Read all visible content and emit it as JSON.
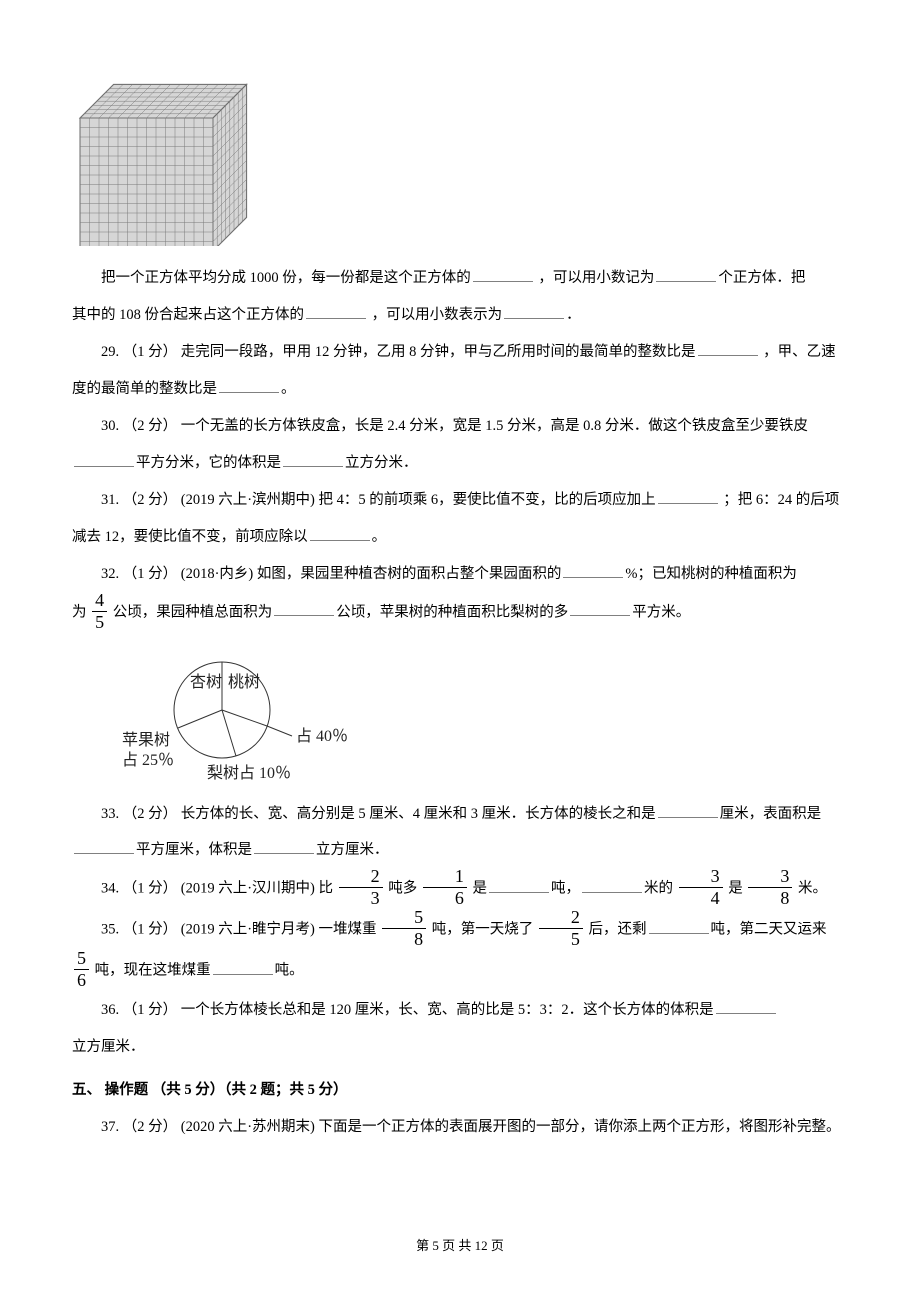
{
  "footer": {
    "text": "第 5 页 共 12 页"
  },
  "cube": {
    "cells": 14,
    "depth": 8,
    "fill": "#d6d6d6",
    "stroke": "#7a7a7a",
    "strokeW": 0.5,
    "outer_stroke": "#5a5a5a"
  },
  "q28": {
    "text1": "把一个正方体平均分成 1000 份，每一份都是这个正方体的",
    "text2": " ，可以用小数记为",
    "text3": "个正方体．把其中的 108 份合起来占这个正方体的",
    "text4": " ，可以用小数表示为",
    "text5": "．"
  },
  "q29": {
    "pre": "29. （1 分） 走完同一段路，甲用 12 分钟，乙用 8 分钟，甲与乙所用时间的最简单的整数比是",
    "mid": " ，甲、乙速度的最简单的整数比是",
    "end": "。"
  },
  "q30": {
    "pre": "30. （2 分） 一个无盖的长方体铁皮盒，长是 2.4 分米，宽是 1.5 分米，高是 0.8 分米．做这个铁皮盒至少要铁皮",
    "mid1": "平方分米，它的体积是",
    "end": "立方分米．"
  },
  "q31": {
    "pre": "31. （2 分） (2019 六上·滨州期中) 把 4：5 的前项乘 6，要使比值不变，比的后项应加上",
    "mid": " ；把 6：24 的后项减去 12，要使比值不变，前项应除以",
    "end": "。"
  },
  "q32": {
    "pre": "32. （1 分） (2018·内乡) 如图，果园里种植杏树的面积占整个果园面积的",
    "pct": "%；已知桃树的种植面积为 ",
    "hectare": " 公顷，果园种植总面积为",
    "mid2": "公顷，苹果树的种植面积比梨树的多",
    "end": "平方米。",
    "frac_num": "4",
    "frac_den": "5",
    "pie": {
      "labels": {
        "xing": "杏树",
        "tao": "桃树",
        "apple1": "苹果树",
        "apple2": "占 25％",
        "pear": "梨树占 10％",
        "tao_pct": "占 40％"
      },
      "stroke": "#333333",
      "fontsize": 16
    }
  },
  "q33": {
    "pre": "33. （2 分） 长方体的长、宽、高分别是 5 厘米、4 厘米和 3 厘米．长方体的棱长之和是",
    "mid1": "厘米，表面积是",
    "mid2": "平方厘米，体积是",
    "end": "立方厘米．"
  },
  "q34": {
    "pre": "34. （1 分） (2019 六上·汉川期中) 比 ",
    "t1": " 吨多 ",
    "t2": " 是",
    "t3": "吨，",
    "t4": "米的 ",
    "t5": " 是 ",
    "t6": " 米。",
    "f1": {
      "n": "2",
      "d": "3"
    },
    "f2": {
      "n": "1",
      "d": "6"
    },
    "f3": {
      "n": "3",
      "d": "4"
    },
    "f4": {
      "n": "3",
      "d": "8"
    }
  },
  "q35": {
    "pre": "35. （1 分） (2019 六上·睢宁月考) 一堆煤重 ",
    "a": " 吨，第一天烧了 ",
    "b": " 后，还剩",
    "c": "吨，第二天又运来 ",
    "d": " 吨，现在这堆煤重",
    "e": "吨。",
    "f1": {
      "n": "5",
      "d": "8"
    },
    "f2": {
      "n": "2",
      "d": "5"
    },
    "f3": {
      "n": "5",
      "d": "6"
    }
  },
  "q36": {
    "pre": "36. （1 分） 一个长方体棱长总和是 120 厘米，长、宽、高的比是 5：3：2．这个长方体的体积是",
    "end": "立方厘米．"
  },
  "section5": "五、 操作题 （共 5 分）（共 2 题；共 5 分）",
  "q37": {
    "text": "37. （2 分） (2020 六上·苏州期末) 下面是一个正方体的表面展开图的一部分，请你添上两个正方形，将图形补完整。"
  }
}
